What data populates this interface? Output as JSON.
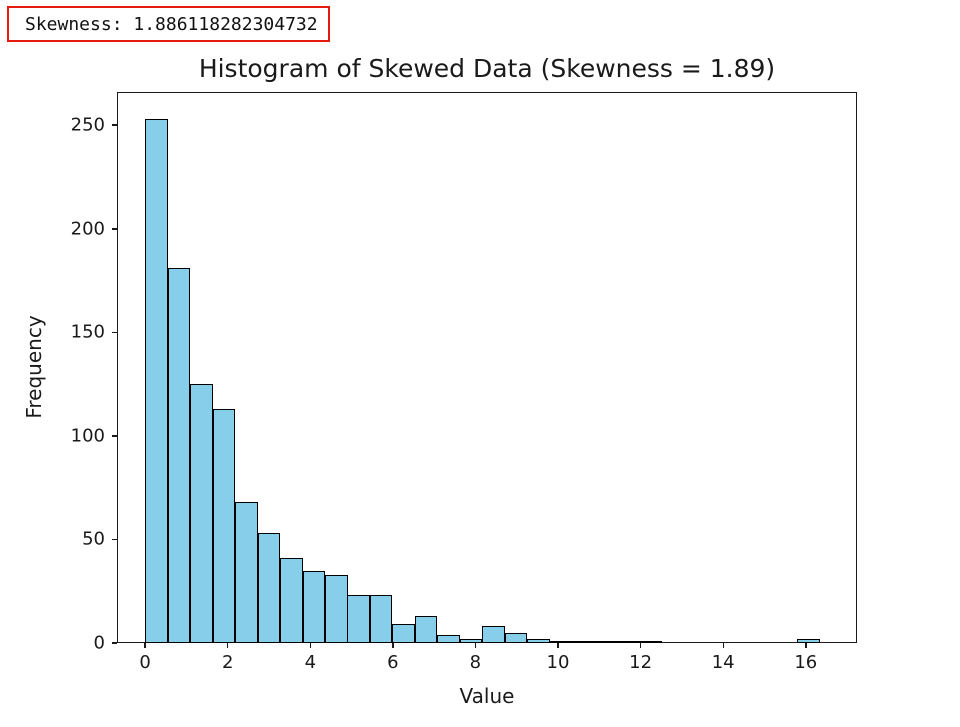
{
  "skewness_box": {
    "text": "Skewness: 1.886118282304732",
    "border_color": "#e8190f"
  },
  "chart_data": {
    "type": "bar",
    "subtype": "histogram",
    "title": "Histogram of Skewed Data (Skewness = 1.89)",
    "xlabel": "Value",
    "ylabel": "Frequency",
    "bar_color": "#87CEEB",
    "bar_edge_color": "#000000",
    "bin_start": 0.0,
    "bin_width": 0.5445,
    "values": [
      253,
      181,
      125,
      113,
      68,
      53,
      41,
      35,
      33,
      23,
      23,
      9,
      13,
      4,
      2,
      8,
      5,
      2,
      1,
      1,
      1,
      1,
      1,
      0,
      0,
      0,
      0,
      0,
      0,
      2
    ],
    "xticks": [
      0,
      2,
      4,
      6,
      8,
      10,
      12,
      14,
      16
    ],
    "yticks": [
      0,
      50,
      100,
      150,
      200,
      250
    ],
    "xlim": [
      -0.68,
      17.24
    ],
    "ylim": [
      0,
      266
    ],
    "grid": false,
    "legend": null
  }
}
